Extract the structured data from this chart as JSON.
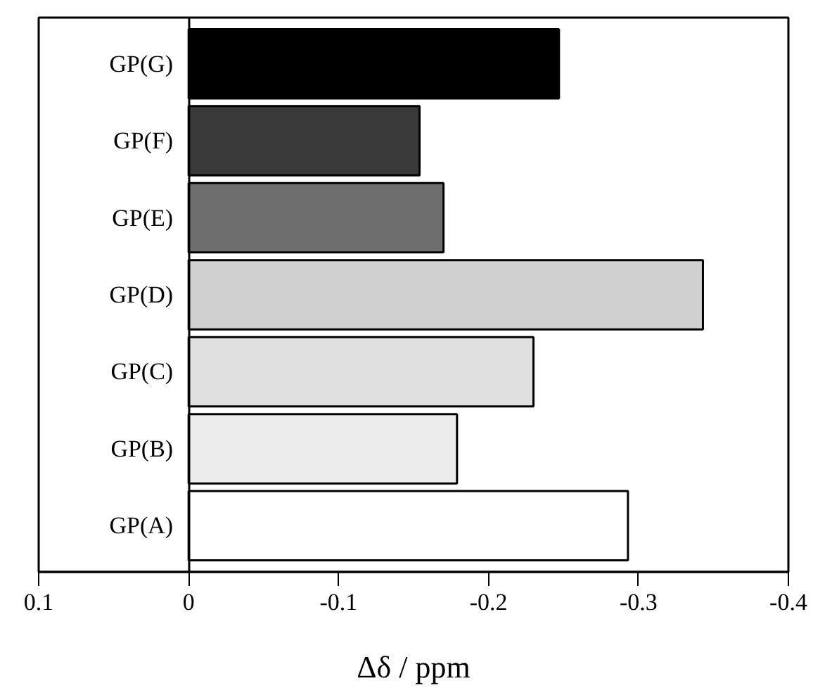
{
  "chart_data": {
    "type": "bar",
    "orientation": "horizontal",
    "xlabel": "Δδ / ppm",
    "categories": [
      "GP(G)",
      "GP(F)",
      "GP(E)",
      "GP(D)",
      "GP(C)",
      "GP(B)",
      "GP(A)"
    ],
    "values": [
      -0.247,
      -0.154,
      -0.17,
      -0.343,
      -0.23,
      -0.179,
      -0.293
    ],
    "colors": [
      "#000000",
      "#3a3a3a",
      "#6e6e6e",
      "#d0d0d0",
      "#e0e0e0",
      "#ececec",
      "#ffffff"
    ],
    "xlim": [
      0.1,
      -0.4
    ],
    "xticks": [
      0.1,
      0,
      -0.1,
      -0.2,
      -0.3,
      -0.4
    ],
    "grid": false
  }
}
